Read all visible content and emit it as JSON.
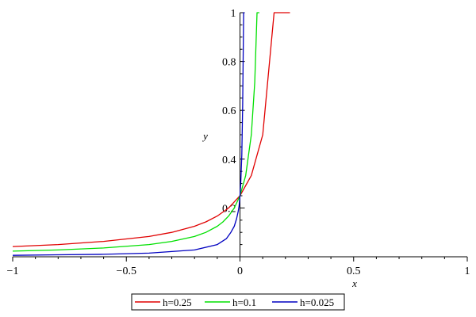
{
  "chart_data": {
    "type": "line",
    "xlabel": "x",
    "ylabel": "y",
    "xlim": [
      -1,
      1
    ],
    "ylim": [
      0,
      1
    ],
    "x_ticks": [
      {
        "value": -1,
        "label": "−1"
      },
      {
        "value": -0.5,
        "label": "−0.5"
      },
      {
        "value": 0,
        "label": "0"
      },
      {
        "value": 0.5,
        "label": "0.5"
      },
      {
        "value": 1,
        "label": "1"
      }
    ],
    "y_ticks": [
      {
        "value": 0.2,
        "label": "0.2"
      },
      {
        "value": 0.4,
        "label": "0.4"
      },
      {
        "value": 0.6,
        "label": "0.6"
      },
      {
        "value": 0.8,
        "label": "0.8"
      },
      {
        "value": 1,
        "label": "1"
      }
    ],
    "grid": false,
    "legend_position": "bottom",
    "series": [
      {
        "name": "h=0.25",
        "color": "#e00000",
        "x": [
          -1,
          -0.8,
          -0.6,
          -0.4,
          -0.3,
          -0.2,
          -0.15,
          -0.1,
          -0.05,
          0,
          0.05,
          0.1,
          0.15,
          0.18,
          0.2,
          0.215,
          0.22
        ],
        "y": [
          0.042,
          0.05,
          0.063,
          0.083,
          0.1,
          0.125,
          0.143,
          0.167,
          0.2,
          0.25,
          0.333,
          0.5,
          1.0,
          1.0,
          1.0,
          1.0,
          1.0
        ]
      },
      {
        "name": "h=0.1",
        "color": "#00e000",
        "x": [
          -1,
          -0.8,
          -0.6,
          -0.4,
          -0.3,
          -0.2,
          -0.15,
          -0.1,
          -0.075,
          -0.05,
          -0.025,
          0,
          0.025,
          0.05,
          0.065,
          0.075,
          0.085
        ],
        "y": [
          0.023,
          0.028,
          0.036,
          0.05,
          0.063,
          0.083,
          0.1,
          0.125,
          0.143,
          0.167,
          0.2,
          0.25,
          0.333,
          0.5,
          0.714,
          1.0,
          1.0
        ]
      },
      {
        "name": "h=0.025",
        "color": "#0000c0",
        "x": [
          -1,
          -0.8,
          -0.6,
          -0.4,
          -0.2,
          -0.1,
          -0.06,
          -0.04,
          -0.025,
          -0.015,
          -0.008,
          -0.004,
          0,
          0.004,
          0.008,
          0.012,
          0.016,
          0.02
        ],
        "y": [
          0.006,
          0.008,
          0.01,
          0.015,
          0.028,
          0.05,
          0.074,
          0.1,
          0.125,
          0.156,
          0.185,
          0.208,
          0.25,
          0.313,
          0.417,
          0.625,
          1.0,
          1.0
        ]
      }
    ]
  }
}
